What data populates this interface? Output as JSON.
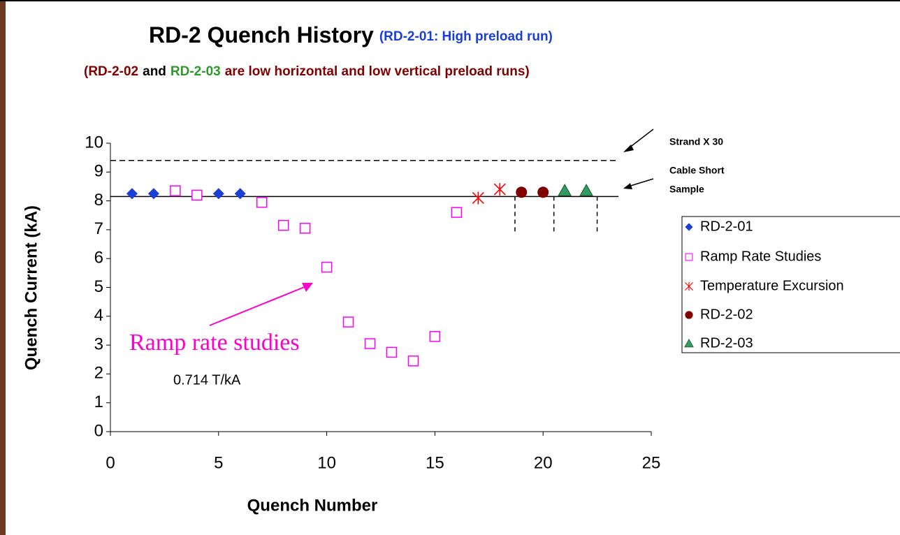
{
  "chart_data": {
    "type": "scatter",
    "title": "RD-2 Quench History",
    "subtitle": "(RD-2-01: High preload run)",
    "subtitle_color": "#1a3fd9",
    "subtitle2": [
      {
        "text": "(RD-2-02",
        "color": "#800000"
      },
      {
        "text": "and",
        "color": "#000000"
      },
      {
        "text": "RD-2-03",
        "color": "#2e9a2e"
      },
      {
        "text": "are low horizontal and low vertical preload runs)",
        "color": "#800000"
      }
    ],
    "xlabel": "Quench Number",
    "ylabel": "Quench Current (kA)",
    "xlim": [
      0,
      25
    ],
    "xticks": [
      0,
      5,
      10,
      15,
      20,
      25
    ],
    "ylim": [
      0,
      10
    ],
    "yticks": [
      0,
      1,
      2,
      3,
      4,
      5,
      6,
      7,
      8,
      9,
      10
    ],
    "series": [
      {
        "name": "RD-2-01",
        "color": "#1a3fd9",
        "marker": "diamond",
        "x": [
          1,
          2,
          5,
          6
        ],
        "values": [
          8.25,
          8.25,
          8.25,
          8.25
        ]
      },
      {
        "name": "Ramp Rate Studies",
        "color": "#ff00ff",
        "marker": "square",
        "x": [
          3,
          4,
          7,
          8,
          9,
          10,
          11,
          12,
          13,
          14,
          15,
          16
        ],
        "values": [
          8.35,
          8.2,
          7.95,
          7.15,
          7.05,
          5.7,
          3.8,
          3.05,
          2.75,
          2.45,
          3.3,
          7.6
        ]
      },
      {
        "name": "Temperature Excursion",
        "color": "#ff0000",
        "marker": "asterisk",
        "x": [
          17,
          18
        ],
        "values": [
          8.1,
          8.4
        ]
      },
      {
        "name": "RD-2-02",
        "color": "#800000",
        "marker": "circle",
        "x": [
          19,
          20
        ],
        "values": [
          8.3,
          8.3
        ]
      },
      {
        "name": "RD-2-03",
        "color": "#339966",
        "marker": "triangle",
        "x": [
          21,
          22
        ],
        "values": [
          8.35,
          8.35
        ]
      }
    ],
    "reference_lines": [
      {
        "value": 9.4,
        "style": "dashed",
        "label": "Strand X 30"
      },
      {
        "value": 8.15,
        "style": "solid",
        "label": [
          "Cable Short",
          "Sample"
        ]
      }
    ],
    "separators": [
      18.7,
      20.5,
      22.5
    ],
    "annotations": [
      "Ramp rate studies",
      "0.714 T/kA"
    ]
  }
}
